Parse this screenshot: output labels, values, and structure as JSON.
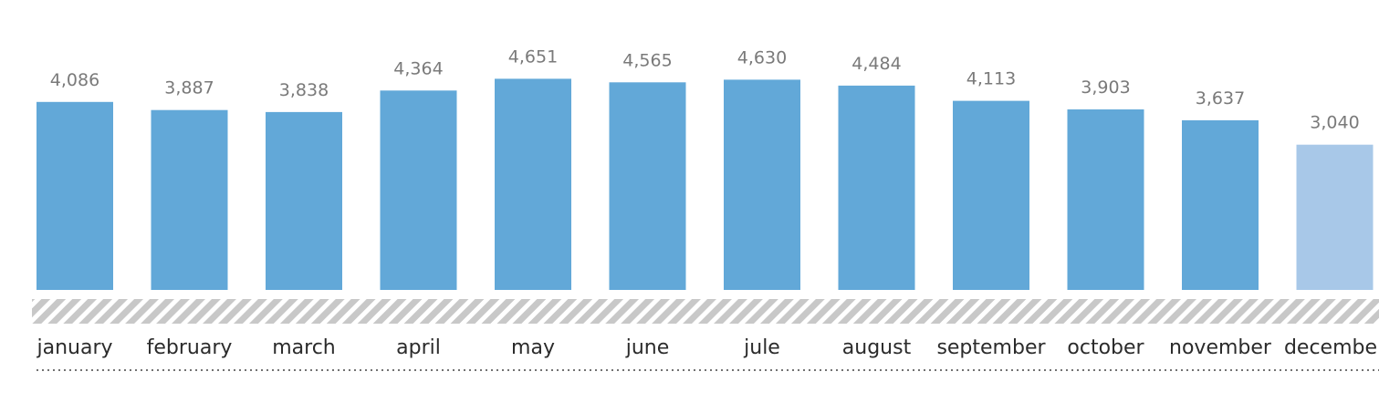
{
  "chart_data": {
    "type": "bar",
    "categories": [
      "january",
      "february",
      "march",
      "april",
      "may",
      "june",
      "jule",
      "august",
      "september",
      "october",
      "november",
      "december"
    ],
    "values": [
      4086,
      3887,
      3838,
      4364,
      4651,
      4565,
      4630,
      4484,
      4113,
      3903,
      3637,
      3040
    ],
    "value_labels": [
      "4,086",
      "3,887",
      "3,838",
      "4,364",
      "4,651",
      "4,565",
      "4,630",
      "4,484",
      "4,113",
      "3,903",
      "3,637",
      "3,040"
    ],
    "highlighted": [
      false,
      false,
      false,
      false,
      false,
      false,
      false,
      false,
      false,
      false,
      false,
      true
    ],
    "ylim": [
      0,
      5000
    ],
    "title": "",
    "xlabel": "",
    "ylabel": "",
    "grid": false,
    "legend": "none",
    "colors": {
      "bar": "#62a8d8",
      "bar_highlight": "#a8c8e8",
      "axis_band": "#c8c8c8",
      "value_text": "#7a7a7a",
      "category_text": "#2b2b2b",
      "dotted_line": "#444444"
    }
  }
}
